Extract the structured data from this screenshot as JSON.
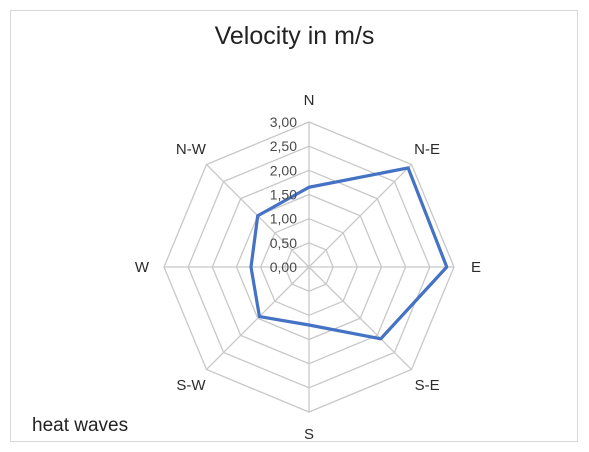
{
  "chart_data": {
    "type": "radar",
    "title": "Velocity in m/s",
    "annotation": "heat waves",
    "categories": [
      "N",
      "N-E",
      "E",
      "S-E",
      "S",
      "S-W",
      "W",
      "N-W"
    ],
    "tick_labels": [
      "0,00",
      "0,50",
      "1,00",
      "1,50",
      "2,00",
      "2,50",
      "3,00"
    ],
    "tick_values": [
      0,
      0.5,
      1.0,
      1.5,
      2.0,
      2.5,
      3.0
    ],
    "rlim": [
      0,
      3.0
    ],
    "grid": true,
    "series": [
      {
        "values": [
          1.65,
          2.9,
          2.85,
          2.1,
          1.2,
          1.45,
          1.2,
          1.5
        ]
      }
    ]
  },
  "colors": {
    "series": "#4472c4",
    "grid": "#c8c8c8"
  }
}
